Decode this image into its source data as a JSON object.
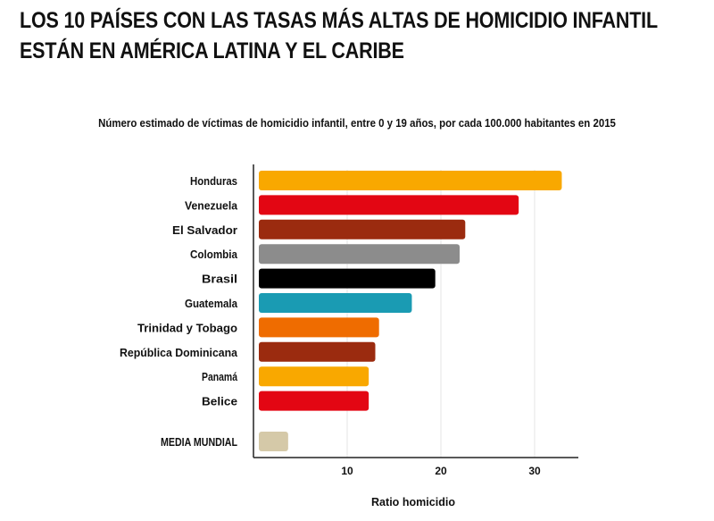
{
  "header": {
    "title_line1": "LOS 10 PAÍSES CON LAS TASAS MÁS ALTAS DE HOMICIDIO INFANTIL",
    "title_line2": "ESTÁN EN AMÉRICA LATINA Y EL CARIBE"
  },
  "chart_data": {
    "type": "bar",
    "orientation": "horizontal",
    "subtitle": "Número estimado de víctimas de homicidio infantil, entre 0 y 19 años, por cada 100.000 habitantes en 2015",
    "xlabel": "Ratio homicidio",
    "ylabel": "",
    "xlim": [
      0,
      34
    ],
    "xticks": [
      10,
      20,
      30
    ],
    "grid": true,
    "categories": [
      "Honduras",
      "Venezuela",
      "El Salvador",
      "Colombia",
      "Brasil",
      "Guatemala",
      "Trinidad y Tobago",
      "República Dominicana",
      "Panamá",
      "Belice",
      "MEDIA MUNDIAL"
    ],
    "values": [
      32.9,
      28.3,
      22.6,
      22.0,
      19.4,
      16.9,
      13.4,
      13.0,
      12.3,
      12.3,
      3.7
    ],
    "colors": [
      "#f9a800",
      "#e30613",
      "#9b2b0f",
      "#8c8c8c",
      "#000000",
      "#1a9bb3",
      "#ef6c00",
      "#9b2b0f",
      "#f9a800",
      "#e30613",
      "#d5c9a8"
    ]
  }
}
